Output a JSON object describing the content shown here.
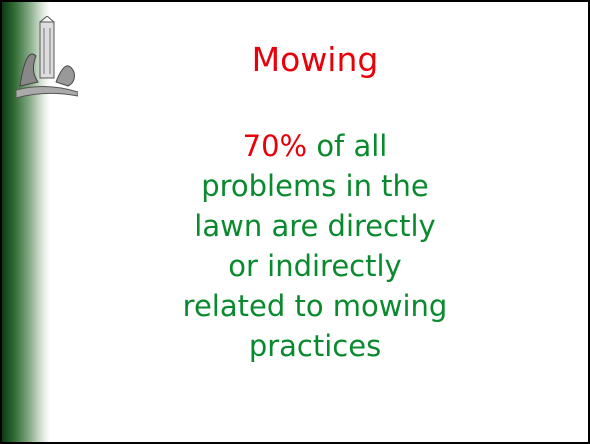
{
  "slide": {
    "title": "Mowing",
    "body": {
      "highlight": "70%",
      "lines": [
        "of all",
        "problems in the",
        "lawn are directly",
        "or indirectly",
        "related to mowing",
        "practices"
      ]
    }
  }
}
